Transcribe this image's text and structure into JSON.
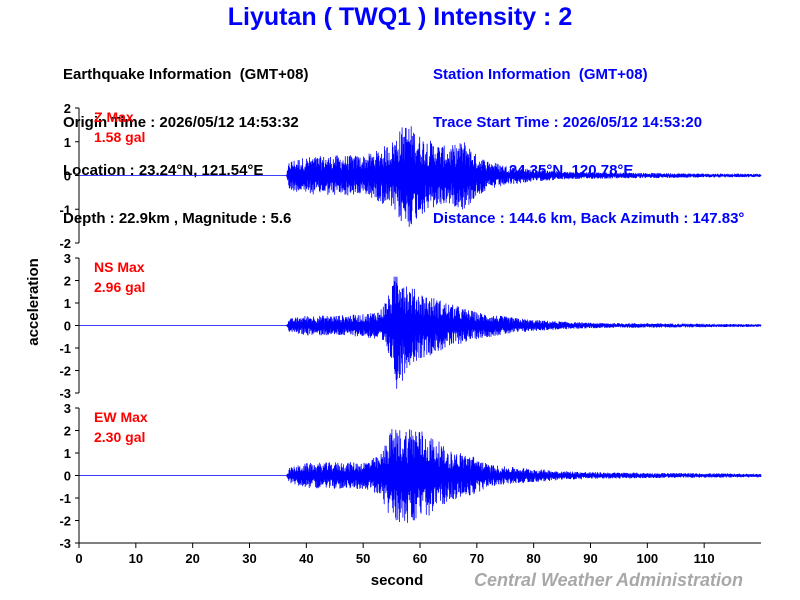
{
  "title": "Liyutan ( TWQ1 ) Intensity : 2",
  "earthquake_info": {
    "heading": "Earthquake Information  (GMT+08)",
    "origin_time": "Origin Time : 2026/05/12 14:53:32",
    "location": "Location : 23.24°N, 121.54°E",
    "depth_magnitude": "Depth : 22.9km , Magnitude : 5.6"
  },
  "station_info": {
    "heading": "Station Information  (GMT+08)",
    "trace_start": "Trace Start Time : 2026/05/12 14:53:20",
    "location": "Location : 24.35°N, 120.78°E",
    "distance": "Distance : 144.6 km, Back Azimuth : 147.83°"
  },
  "footer": "Central Weather Administration",
  "colors": {
    "title": "#0000ff",
    "trace": "#0000ff",
    "max_label": "#ff0000",
    "axis": "#000000",
    "footer": "#a8a8a8"
  },
  "chart_data": {
    "type": "line",
    "xlabel": "second",
    "ylabel": "acceleration",
    "xlim": [
      0,
      120
    ],
    "x_ticks": [
      0,
      10,
      20,
      30,
      40,
      50,
      60,
      70,
      80,
      90,
      100,
      110
    ],
    "panels": [
      {
        "component": "Z",
        "max_label": "Z Max",
        "max_value": "1.58 gal",
        "ylim": [
          -2,
          2
        ],
        "y_ticks": [
          -2,
          -1,
          0,
          1,
          2
        ],
        "envelope": {
          "t": [
            0,
            36.5,
            37,
            40,
            45,
            50,
            52,
            55,
            57,
            58,
            60,
            63,
            65,
            68,
            70,
            72,
            75,
            80,
            85,
            90,
            100,
            110,
            120
          ],
          "a": [
            0,
            0,
            0.45,
            0.55,
            0.6,
            0.6,
            0.7,
            1.0,
            1.5,
            1.58,
            1.2,
            0.95,
            0.85,
            1.05,
            0.6,
            0.45,
            0.3,
            0.18,
            0.12,
            0.1,
            0.08,
            0.06,
            0.05
          ]
        }
      },
      {
        "component": "NS",
        "max_label": "NS Max",
        "max_value": "2.96 gal",
        "ylim": [
          -3,
          3
        ],
        "y_ticks": [
          -3,
          -2,
          -1,
          0,
          1,
          2,
          3
        ],
        "envelope": {
          "t": [
            0,
            36.5,
            37,
            40,
            45,
            50,
            53,
            55,
            56,
            57,
            58,
            60,
            62,
            65,
            68,
            70,
            75,
            80,
            85,
            90,
            100,
            110,
            120
          ],
          "a": [
            0,
            0,
            0.3,
            0.45,
            0.45,
            0.5,
            0.7,
            1.6,
            2.96,
            2.4,
            1.8,
            1.5,
            1.3,
            1.0,
            0.75,
            0.6,
            0.4,
            0.25,
            0.18,
            0.12,
            0.1,
            0.08,
            0.06
          ]
        }
      },
      {
        "component": "EW",
        "max_label": "EW Max",
        "max_value": "2.30 gal",
        "ylim": [
          -3,
          3
        ],
        "y_ticks": [
          -3,
          -2,
          -1,
          0,
          1,
          2,
          3
        ],
        "envelope": {
          "t": [
            0,
            36.5,
            37,
            40,
            45,
            50,
            53,
            55,
            57,
            59,
            61,
            63,
            65,
            68,
            70,
            72,
            75,
            80,
            85,
            90,
            100,
            110,
            120
          ],
          "a": [
            0,
            0,
            0.35,
            0.55,
            0.6,
            0.6,
            0.9,
            2.1,
            2.1,
            2.3,
            1.9,
            1.6,
            1.1,
            1.0,
            0.8,
            0.5,
            0.4,
            0.3,
            0.2,
            0.15,
            0.12,
            0.1,
            0.08
          ]
        }
      }
    ]
  }
}
